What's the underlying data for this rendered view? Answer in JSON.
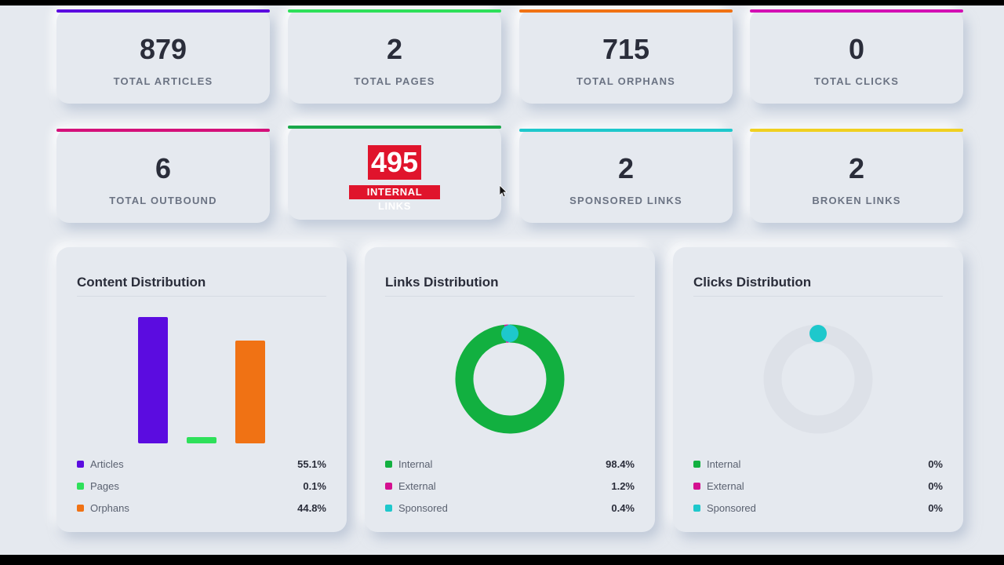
{
  "stats_row1": [
    {
      "value": "879",
      "label": "TOTAL ARTICLES",
      "color": "#5b0ce0"
    },
    {
      "value": "2",
      "label": "TOTAL PAGES",
      "color": "#2ee05a"
    },
    {
      "value": "715",
      "label": "TOTAL ORPHANS",
      "color": "#f07214"
    },
    {
      "value": "0",
      "label": "TOTAL CLICKS",
      "color": "#d410b4"
    }
  ],
  "stats_row2": [
    {
      "value": "6",
      "label": "TOTAL OUTBOUND",
      "color": "#d4107a"
    },
    {
      "value": "495",
      "label": "INTERNAL LINKS",
      "color": "#1aa84a"
    },
    {
      "value": "2",
      "label": "SPONSORED LINKS",
      "color": "#1ec8cc"
    },
    {
      "value": "2",
      "label": "BROKEN LINKS",
      "color": "#f0d020"
    }
  ],
  "panels": {
    "content": {
      "title": "Content Distribution",
      "legend": [
        {
          "name": "Articles",
          "value": "55.1%",
          "color": "#5b0ce0"
        },
        {
          "name": "Pages",
          "value": "0.1%",
          "color": "#2ee05a"
        },
        {
          "name": "Orphans",
          "value": "44.8%",
          "color": "#f07214"
        }
      ]
    },
    "links": {
      "title": "Links Distribution",
      "legend": [
        {
          "name": "Internal",
          "value": "98.4%",
          "color": "#12b040"
        },
        {
          "name": "External",
          "value": "1.2%",
          "color": "#d41090"
        },
        {
          "name": "Sponsored",
          "value": "0.4%",
          "color": "#1ec8cc"
        }
      ]
    },
    "clicks": {
      "title": "Clicks Distribution",
      "legend": [
        {
          "name": "Internal",
          "value": "0%",
          "color": "#12b040"
        },
        {
          "name": "External",
          "value": "0%",
          "color": "#d41090"
        },
        {
          "name": "Sponsored",
          "value": "0%",
          "color": "#1ec8cc"
        }
      ]
    }
  },
  "chart_data": [
    {
      "type": "bar",
      "categories": [
        "Articles",
        "Pages",
        "Orphans"
      ],
      "values": [
        879,
        2,
        715
      ],
      "colors": [
        "#5b0ce0",
        "#2ee05a",
        "#f07214"
      ],
      "grid": false
    },
    {
      "type": "pie",
      "categories": [
        "Internal",
        "External",
        "Sponsored"
      ],
      "values": [
        98.4,
        1.2,
        0.4
      ],
      "colors": [
        "#12b040",
        "#d41090",
        "#1ec8cc"
      ]
    },
    {
      "type": "pie",
      "categories": [
        "Internal",
        "External",
        "Sponsored"
      ],
      "values": [
        0,
        0,
        0
      ],
      "colors": [
        "#12b040",
        "#d41090",
        "#1ec8cc"
      ]
    }
  ]
}
